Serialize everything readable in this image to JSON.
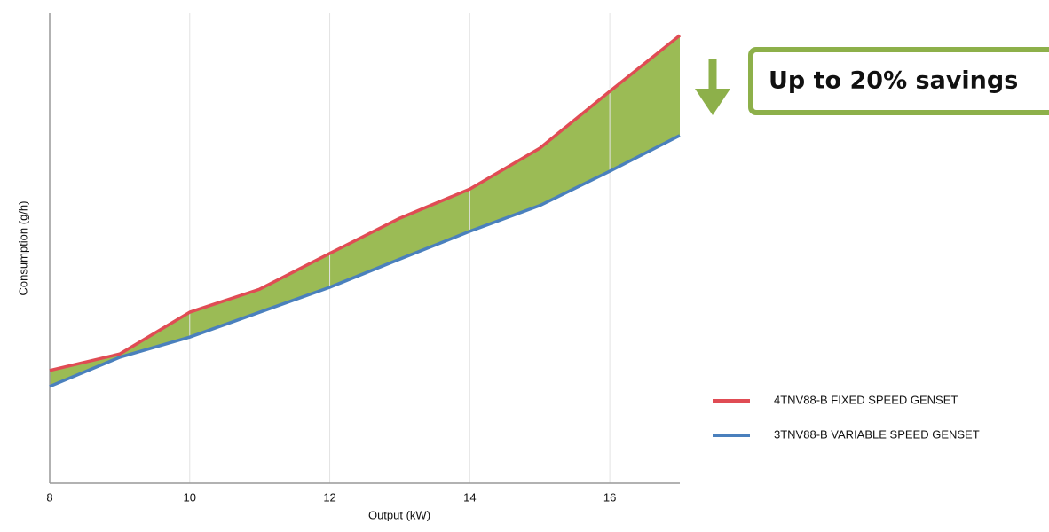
{
  "chart_data": {
    "type": "line",
    "x_label": "Output (kW)",
    "y_label": "Consumption (g/h)",
    "annotation": "Up to 20% savings",
    "x": [
      8,
      9,
      10,
      11,
      12,
      13,
      14,
      15,
      16,
      17
    ],
    "series": [
      {
        "name": "4TNV88-B FIXED SPEED GENSET",
        "color": "#e04c54",
        "values": [
          24.0,
          27.5,
          36.4,
          41.3,
          48.9,
          56.4,
          62.6,
          71.3,
          83.4,
          95.3
        ]
      },
      {
        "name": "3TNV88-B VARIABLE SPEED GENSET",
        "color": "#4a80bd",
        "values": [
          20.6,
          26.8,
          31.1,
          36.4,
          41.7,
          47.7,
          53.6,
          59.1,
          66.4,
          74.0
        ]
      }
    ],
    "xlim": [
      8,
      17
    ],
    "xticks": [
      8,
      10,
      12,
      14,
      16
    ],
    "ylim": [
      0,
      100
    ],
    "grid": true,
    "fill_between_color": "#9bbb55",
    "legend": "right"
  }
}
